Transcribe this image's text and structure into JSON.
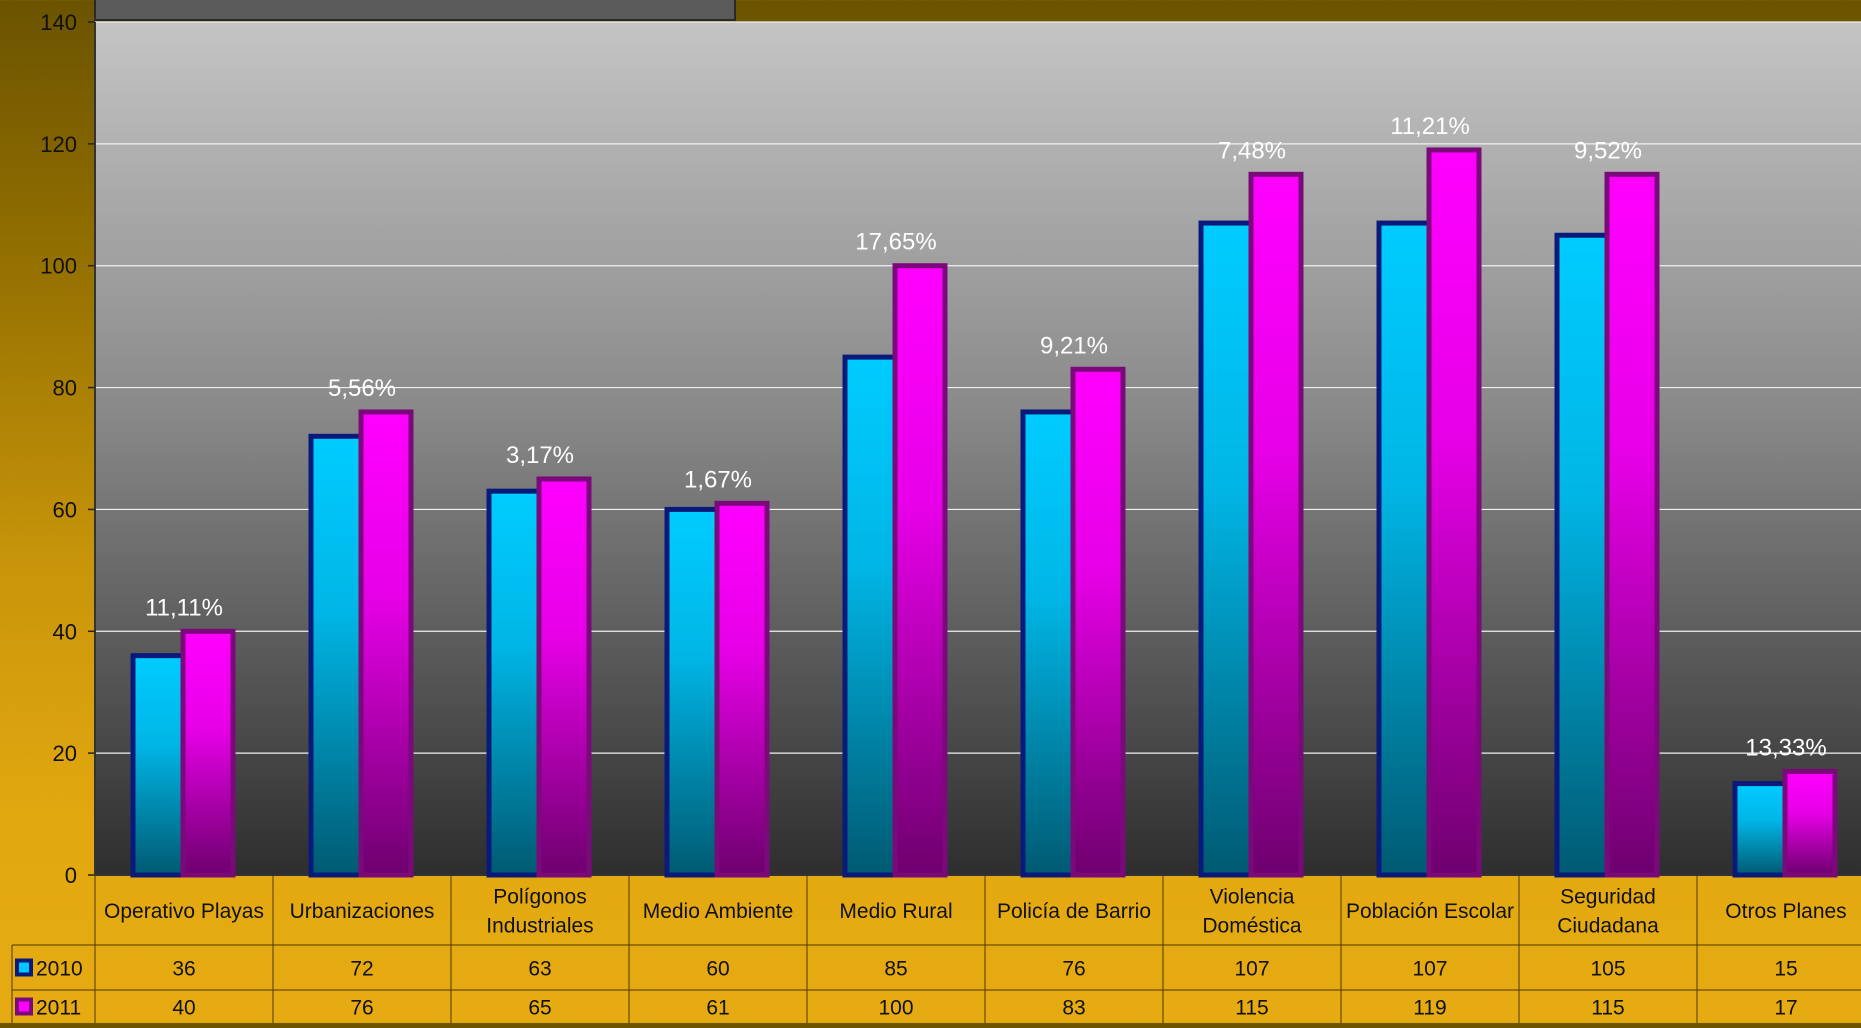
{
  "chart_data": {
    "type": "bar",
    "title": "",
    "xlabel": "",
    "ylabel": "",
    "ylim": [
      0,
      140
    ],
    "yticks": [
      0,
      20,
      40,
      60,
      80,
      100,
      120,
      140
    ],
    "grid": true,
    "categories": [
      [
        "Operativo Playas"
      ],
      [
        "Urbanizaciones"
      ],
      [
        "Polígonos",
        "Industriales"
      ],
      [
        "Medio Ambiente"
      ],
      [
        "Medio Rural"
      ],
      [
        "Policía de Barrio"
      ],
      [
        "Violencia",
        "Doméstica"
      ],
      [
        "Población Escolar"
      ],
      [
        "Seguridad",
        "Ciudadana"
      ],
      [
        "Otros Planes"
      ]
    ],
    "series": [
      {
        "name": "2010",
        "color": "#00c8ff",
        "values": [
          36,
          72,
          63,
          60,
          85,
          76,
          107,
          107,
          105,
          15
        ]
      },
      {
        "name": "2011",
        "color": "#ff00ff",
        "values": [
          40,
          76,
          65,
          61,
          100,
          83,
          115,
          119,
          115,
          17
        ]
      }
    ],
    "annotations": [
      "11,11%",
      "5,56%",
      "3,17%",
      "1,67%",
      "17,65%",
      "9,21%",
      "7,48%",
      "11,21%",
      "9,52%",
      "13,33%"
    ],
    "data_table": true
  }
}
